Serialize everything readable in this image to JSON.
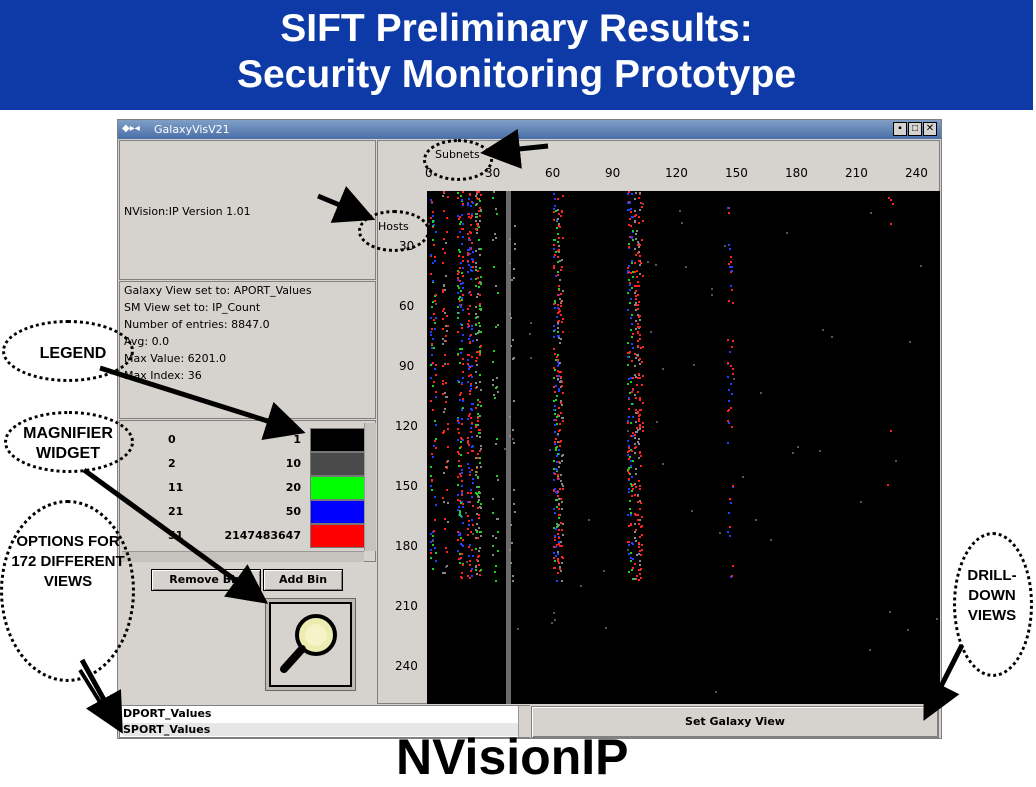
{
  "slide": {
    "title_line1": "SIFT Preliminary Results:",
    "title_line2": "Security Monitoring Prototype",
    "footer_title": "NVisionIP",
    "banner_color": "#0d3aa6"
  },
  "window": {
    "title": "GalaxyVisV21",
    "version": "NVision:IP Version 1.01"
  },
  "info": {
    "galaxy_view": "Galaxy View set to: APORT_Values",
    "sm_view": "SM View set to: IP_Count",
    "entries": "Number of entries: 8847.0",
    "avg": "Avg: 0.0",
    "max_value": "Max Value: 6201.0",
    "max_index": "Max Index: 36"
  },
  "legend": [
    {
      "from": "0",
      "to": "1",
      "color": "#000000"
    },
    {
      "from": "2",
      "to": "10",
      "color": "#4a4a4a"
    },
    {
      "from": "11",
      "to": "20",
      "color": "#00ff00"
    },
    {
      "from": "21",
      "to": "50",
      "color": "#0000ff"
    },
    {
      "from": "51",
      "to": "2147483647",
      "color": "#ff0000"
    }
  ],
  "buttons": {
    "remove_bin": "Remove Bin",
    "add_bin": "Add Bin",
    "set_galaxy_view": "Set Galaxy View"
  },
  "view_list": [
    "DPORT_Values",
    "SPORT_Values"
  ],
  "galaxy": {
    "x_axis_label": "Subnets",
    "y_axis_label": "Hosts",
    "x_ticks": [
      "0",
      "30",
      "60",
      "90",
      "120",
      "150",
      "180",
      "210",
      "240"
    ],
    "y_ticks": [
      "30",
      "60",
      "90",
      "120",
      "150",
      "180",
      "210",
      "240"
    ]
  },
  "callouts": {
    "legend": "LEGEND",
    "magnifier": "MAGNIFIER WIDGET",
    "options": "OPTIONS FOR 172 DIFFERENT VIEWS",
    "drilldown": "DRILL-DOWN VIEWS"
  }
}
